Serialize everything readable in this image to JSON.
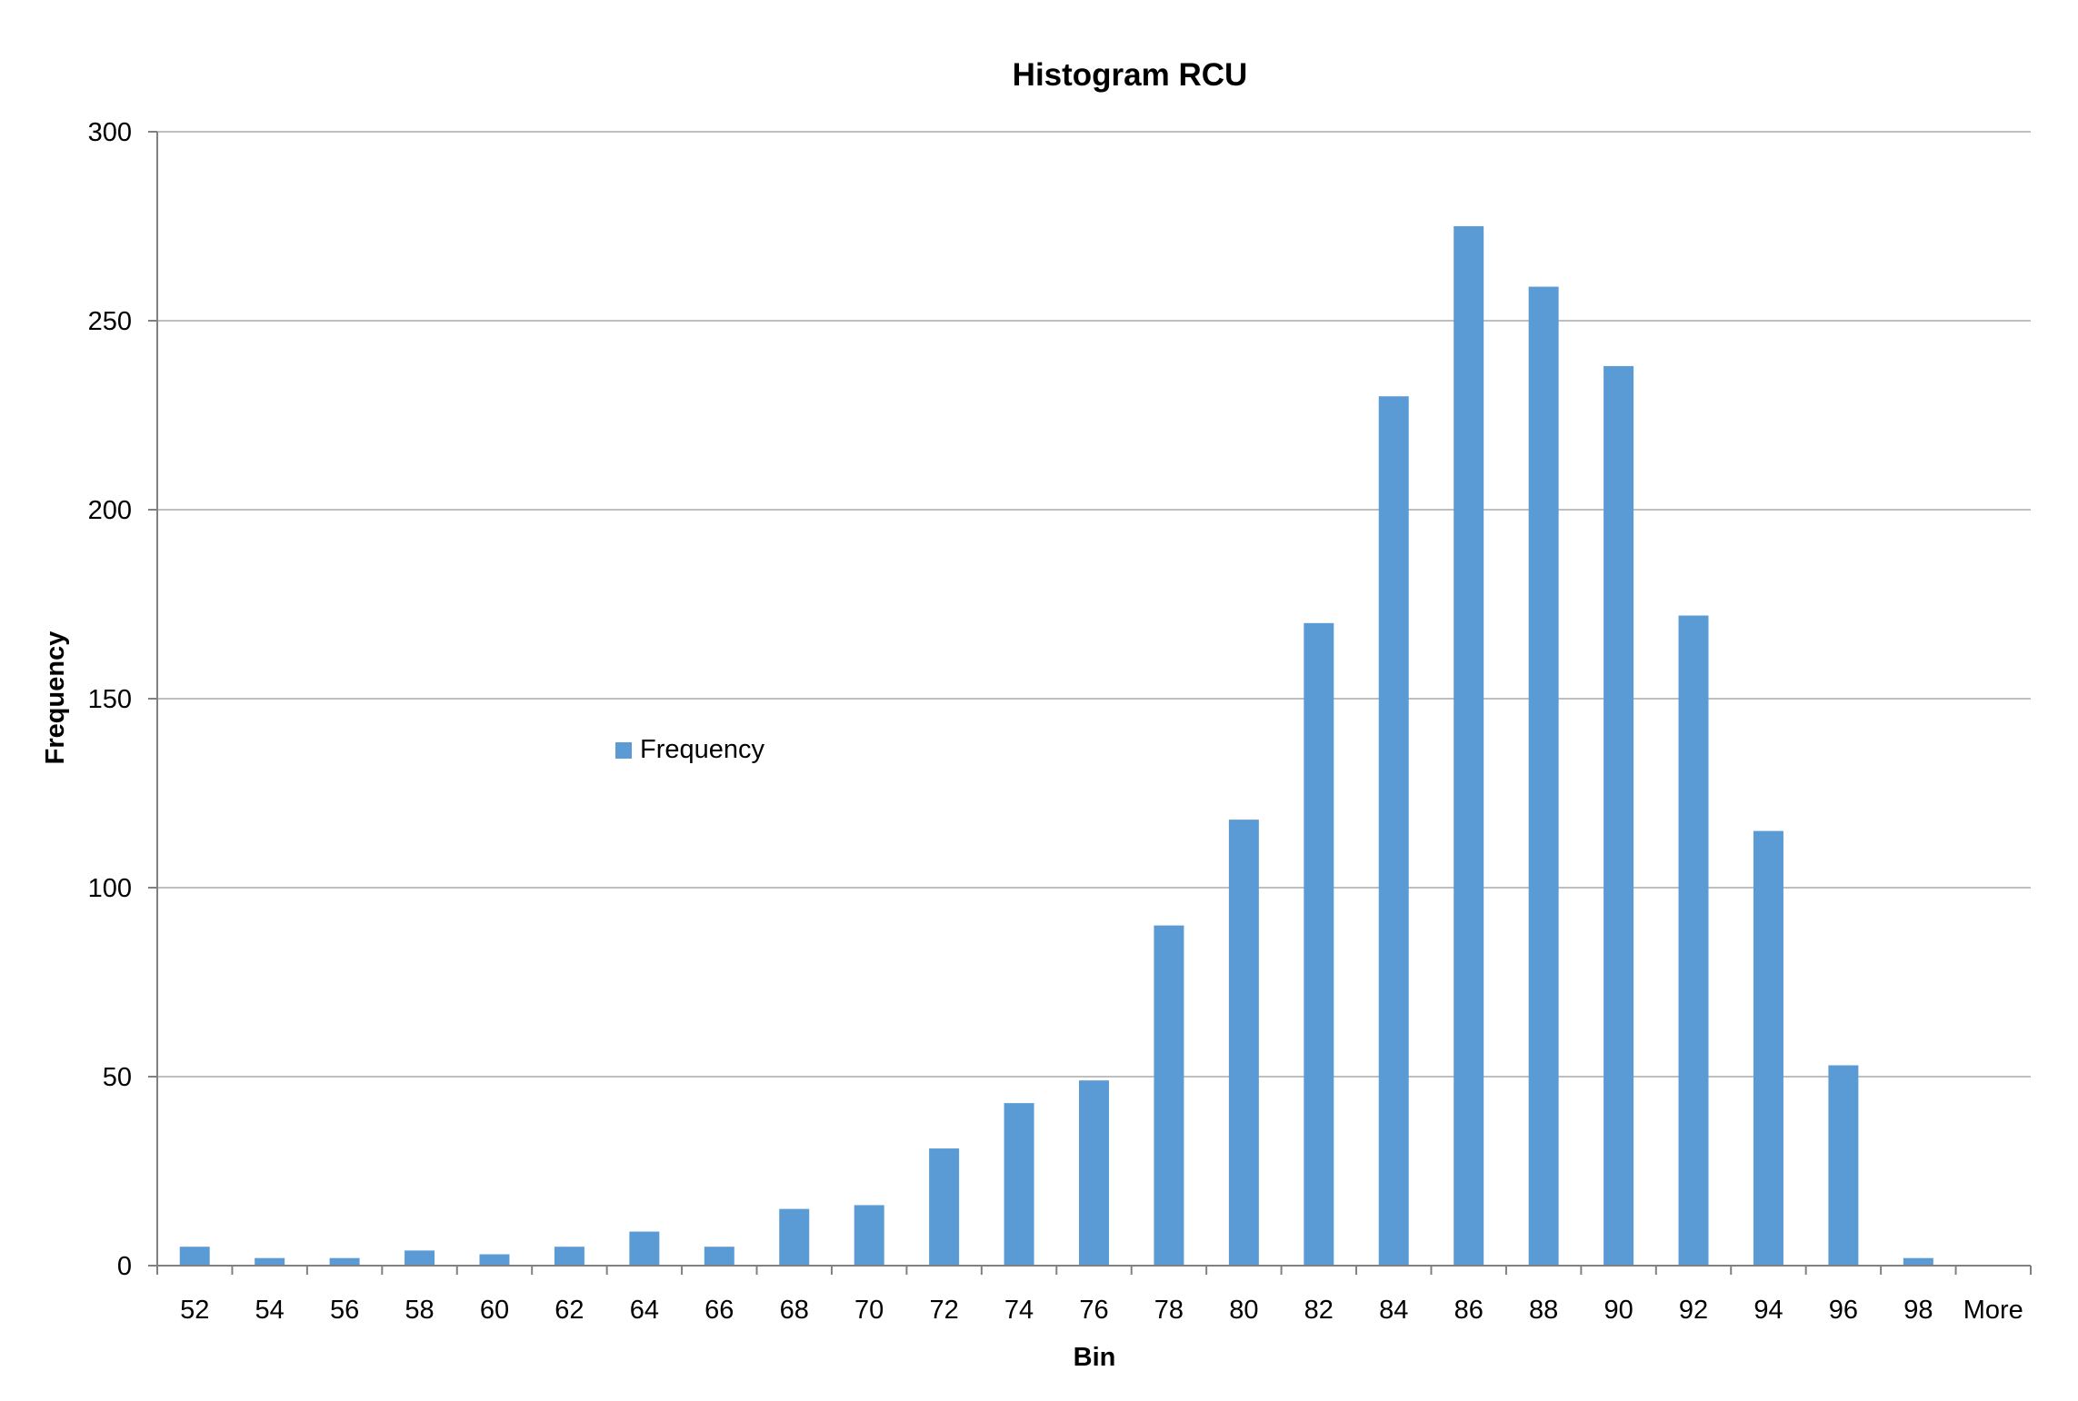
{
  "chart_data": {
    "type": "bar",
    "title": "Histogram RCU",
    "xlabel": "Bin",
    "ylabel": "Frequency",
    "categories": [
      "52",
      "54",
      "56",
      "58",
      "60",
      "62",
      "64",
      "66",
      "68",
      "70",
      "72",
      "74",
      "76",
      "78",
      "80",
      "82",
      "84",
      "86",
      "88",
      "90",
      "92",
      "94",
      "96",
      "98",
      "More"
    ],
    "series": [
      {
        "name": "Frequency",
        "values": [
          5,
          2,
          2,
          4,
          3,
          5,
          9,
          5,
          15,
          16,
          31,
          43,
          49,
          90,
          118,
          170,
          230,
          275,
          259,
          238,
          172,
          115,
          53,
          2,
          0
        ]
      }
    ],
    "ylim": [
      0,
      300
    ],
    "yticks": [
      0,
      50,
      100,
      150,
      200,
      250,
      300
    ],
    "grid": "horizontal",
    "legend_position": "center-left",
    "colors": {
      "bar": "#5B9BD5",
      "grid": "#BFBFBF",
      "axis": "#808080"
    }
  }
}
